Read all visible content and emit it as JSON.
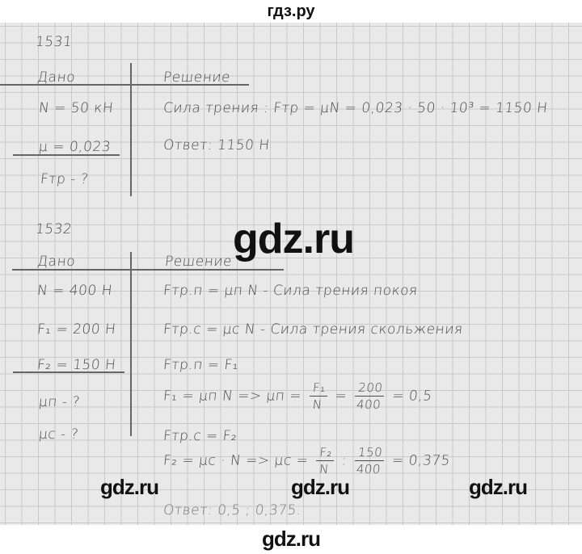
{
  "site_title": "гдз.ру",
  "watermark": "gdz.ru",
  "problem_1531": {
    "number": "1531",
    "given_header": "Дано",
    "solution_header": "Решение",
    "given": [
      "N = 50 кН",
      "μ = 0,023",
      "Fтр - ?"
    ],
    "solution": [
      "Сила трения :  Fтр = μN = 0,023 · 50 · 10³ = 1150 Н",
      "Ответ:  1150 Н"
    ]
  },
  "problem_1532": {
    "number": "1532",
    "given_header": "Дано",
    "solution_header": "Решение",
    "given": [
      "N = 400 Н",
      "F₁ = 200 Н",
      "F₂ = 150 Н",
      "μп - ?",
      "μс - ?"
    ],
    "solution": [
      "Fтр.п = μп N  -  Сила трения покоя",
      "Fтр.с = μс N  -  Сила трения скольжения",
      "Fтр.п = F₁",
      "F₁ = μп N  =>  μп =",
      "Fтр.с = F₂",
      "F₂ = μс · N  =>  μс ="
    ],
    "frac1": {
      "num": "F₁",
      "den": "N",
      "num2": "200",
      "den2": "400",
      "result": "= 0,5"
    },
    "frac2": {
      "num": "F₂",
      "den": "N",
      "num2": "150",
      "den2": "400",
      "result": "= 0,375"
    },
    "answer": "Ответ: 0,5 ; 0,375."
  }
}
